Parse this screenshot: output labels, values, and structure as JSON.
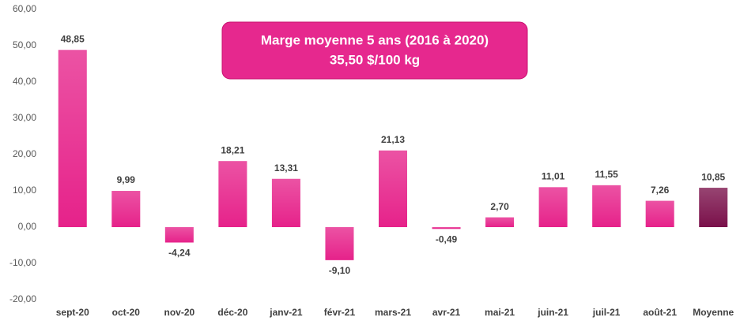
{
  "chart_data": {
    "type": "bar",
    "annotation": [
      "Marge moyenne 5 ans (2016 à 2020)",
      "35,50 $/100 kg"
    ],
    "categories": [
      "sept-20",
      "oct-20",
      "nov-20",
      "déc-20",
      "janv-21",
      "févr-21",
      "mars-21",
      "avr-21",
      "mai-21",
      "juin-21",
      "juil-21",
      "août-21",
      "Moyenne"
    ],
    "values": [
      48.85,
      9.99,
      -4.24,
      18.21,
      13.31,
      -9.1,
      21.13,
      -0.49,
      2.7,
      11.01,
      11.55,
      7.26,
      10.85
    ],
    "value_labels": [
      "48,85",
      "9,99",
      "-4,24",
      "18,21",
      "13,31",
      "-9,10",
      "21,13",
      "-0,49",
      "2,70",
      "11,01",
      "11,55",
      "7,26",
      "10,85"
    ],
    "colors": [
      "#e6228a",
      "#e6228a",
      "#e6228a",
      "#e6228a",
      "#e6228a",
      "#e6228a",
      "#e6228a",
      "#e6228a",
      "#e6228a",
      "#e6228a",
      "#e6228a",
      "#e6228a",
      "#7a104a"
    ],
    "ylim": [
      -20,
      60
    ],
    "yticks": [
      {
        "value": -20,
        "label": "-20,00"
      },
      {
        "value": -10,
        "label": "-10,00"
      },
      {
        "value": 0,
        "label": "0,00"
      },
      {
        "value": 10,
        "label": "10,00"
      },
      {
        "value": 20,
        "label": "20,00"
      },
      {
        "value": 30,
        "label": "30,00"
      },
      {
        "value": 40,
        "label": "40,00"
      },
      {
        "value": 50,
        "label": "50,00"
      },
      {
        "value": 60,
        "label": "60,00"
      }
    ],
    "grid": false
  }
}
